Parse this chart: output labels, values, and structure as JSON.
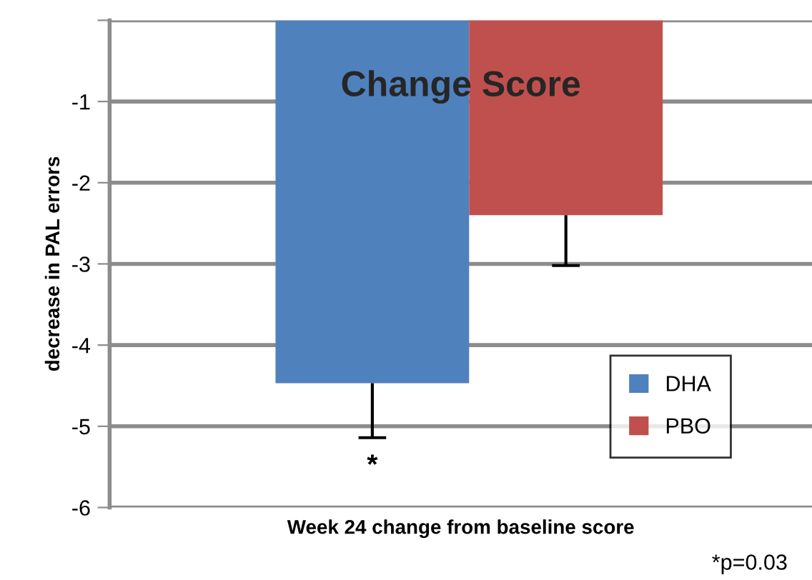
{
  "chart_data": {
    "type": "bar",
    "title": "Change Score",
    "xlabel": "Week 24 change from baseline score",
    "ylabel": "decrease in PAL errors",
    "categories": [
      null
    ],
    "series": [
      {
        "name": "DHA",
        "color": "#4f81bd",
        "values": [
          -4.47
        ],
        "errors": [
          [
            -5.14,
            -4.47
          ]
        ]
      },
      {
        "name": "PBO",
        "color": "#c0504d",
        "values": [
          -2.4
        ],
        "errors": [
          [
            -3.02,
            -2.4
          ]
        ]
      }
    ],
    "ylim": [
      -6,
      0
    ],
    "yticks": [
      {
        "value": 0,
        "label": null
      },
      -1,
      -2,
      -3,
      -4,
      -5,
      -6
    ],
    "grid": "y",
    "legend": "bottom right",
    "annotations": [
      "*",
      "*p=0.03"
    ]
  }
}
